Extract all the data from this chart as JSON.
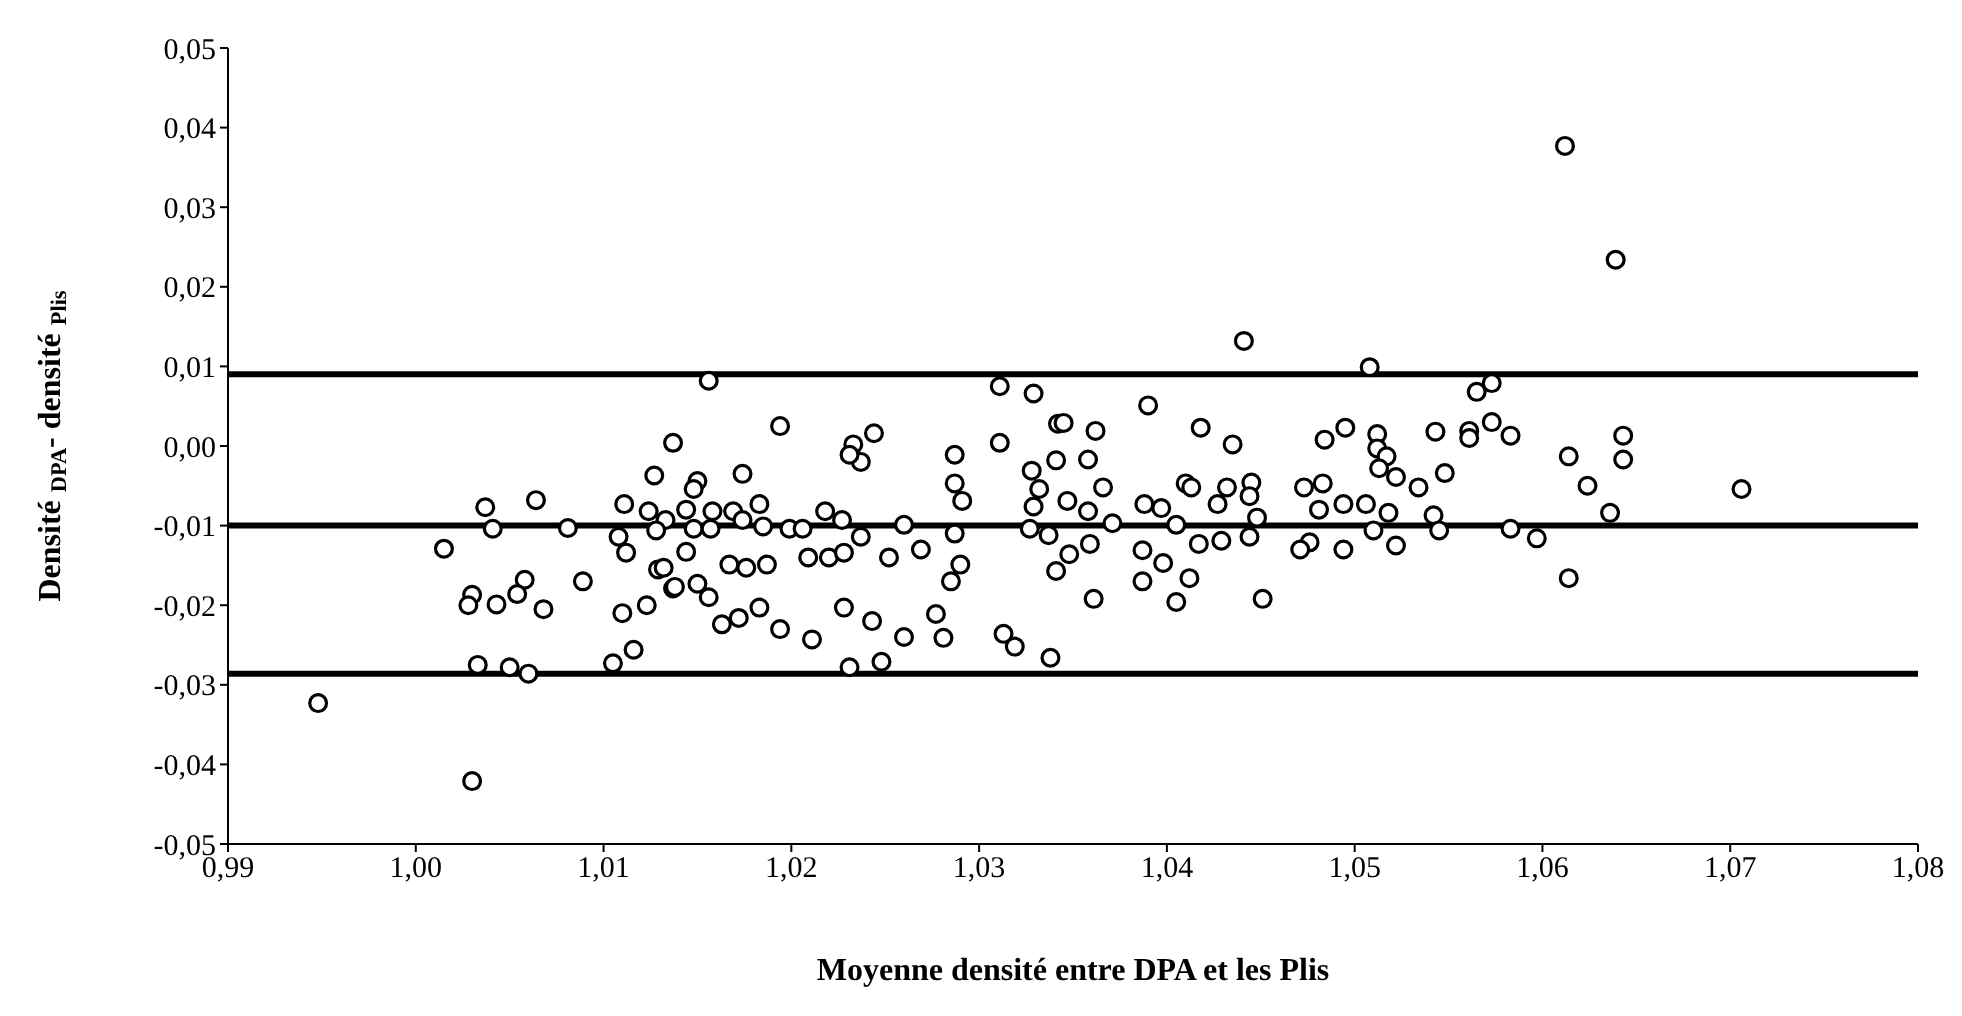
{
  "chart_data": {
    "type": "scatter",
    "xlabel": "Moyenne densité entre DPA et les  Plis",
    "ylabel": "Densité $_{DPA}$- densité $_{Plis}$",
    "xlim": [
      0.99,
      1.08
    ],
    "xticks": [
      {
        "value": 0.99,
        "label": "0,99"
      },
      {
        "value": 1.0,
        "label": "1,00"
      },
      {
        "value": 1.01,
        "label": "1,01"
      },
      {
        "value": 1.02,
        "label": "1,02"
      },
      {
        "value": 1.03,
        "label": "1,03"
      },
      {
        "value": 1.04,
        "label": "1,04"
      },
      {
        "value": 1.05,
        "label": "1,05"
      },
      {
        "value": 1.06,
        "label": "1,06"
      },
      {
        "value": 1.07,
        "label": "1,07"
      },
      {
        "value": 1.08,
        "label": "1,08"
      }
    ],
    "ylim": [
      -0.05,
      0.05
    ],
    "yticks": [
      {
        "value": -0.05,
        "label": "-0,05"
      },
      {
        "value": -0.04,
        "label": "-0,04"
      },
      {
        "value": -0.03,
        "label": "-0,03"
      },
      {
        "value": -0.02,
        "label": "-0,02"
      },
      {
        "value": -0.01,
        "label": "-0,01"
      },
      {
        "value": 0,
        "label": "0,00"
      },
      {
        "value": 0.01,
        "label": "0,01"
      },
      {
        "value": 0.02,
        "label": "0,02"
      },
      {
        "value": 0.03,
        "label": "0,03"
      },
      {
        "value": 0.04,
        "label": "0,04"
      },
      {
        "value": 0.05,
        "label": "0,05"
      }
    ],
    "grid": false,
    "marker": "circle",
    "ref_lines": [
      {
        "axis": "y",
        "value": 0.009,
        "color": "#000000"
      },
      {
        "axis": "y",
        "value": -0.01,
        "color": "#000000"
      },
      {
        "axis": "y",
        "value": -0.0286,
        "color": "#000000"
      }
    ],
    "series": [
      {
        "color": "#000000",
        "x": [
          1.0137,
          1.0127,
          1.0037,
          1.0064,
          1.0041,
          1.0015,
          1.0081,
          1.0111,
          1.0124,
          1.0133,
          1.0108,
          1.0112,
          1.0128,
          1.0129,
          1.0137,
          1.0089,
          1.0058,
          1.0054,
          1.003,
          1.0028,
          1.0043,
          1.0068,
          1.011,
          1.0123,
          1.0116,
          1.0105,
          1.0033,
          1.005,
          1.006,
          0.9948,
          1.003,
          1.0156,
          1.0194,
          1.0174,
          1.015,
          1.0148,
          1.0144,
          1.0158,
          1.0169,
          1.0183,
          1.0174,
          1.0148,
          1.0157,
          1.0185,
          1.0199,
          1.0206,
          1.0218,
          1.0227,
          1.0237,
          1.0233,
          1.0244,
          1.0237,
          1.0231,
          1.026,
          1.0144,
          1.0132,
          1.0167,
          1.0176,
          1.0187,
          1.0209,
          1.022,
          1.0228,
          1.0252,
          1.0269,
          1.0138,
          1.015,
          1.0156,
          1.0183,
          1.0172,
          1.0163,
          1.0194,
          1.0211,
          1.0228,
          1.0243,
          1.026,
          1.0277,
          1.0281,
          1.0231,
          1.0248,
          1.0287,
          1.0287,
          1.0291,
          1.0287,
          1.029,
          1.0285,
          1.0311,
          1.0329,
          1.0311,
          1.0342,
          1.0328,
          1.0332,
          1.0329,
          1.0327,
          1.0337,
          1.0341,
          1.0313,
          1.0319,
          1.0338,
          1.0441,
          1.0508,
          1.039,
          1.0565,
          1.0345,
          1.0362,
          1.0418,
          1.0435,
          1.0484,
          1.0495,
          1.0512,
          1.0512,
          1.0517,
          1.0543,
          1.0561,
          1.0561,
          1.0341,
          1.0358,
          1.0513,
          1.0522,
          1.0548,
          1.0534,
          1.0366,
          1.0347,
          1.0358,
          1.0388,
          1.0397,
          1.041,
          1.0413,
          1.0427,
          1.0432,
          1.0445,
          1.0444,
          1.0448,
          1.0473,
          1.0483,
          1.0481,
          1.0494,
          1.0506,
          1.0518,
          1.0542,
          1.0545,
          1.0371,
          1.0405,
          1.0359,
          1.0348,
          1.0387,
          1.0398,
          1.0387,
          1.0412,
          1.0417,
          1.0429,
          1.0444,
          1.0476,
          1.0471,
          1.0494,
          1.051,
          1.0522,
          1.0361,
          1.0405,
          1.0451,
          1.0612,
          1.0639,
          1.0573,
          1.0573,
          1.0583,
          1.0614,
          1.0643,
          1.0643,
          1.0624,
          1.0636,
          1.0706,
          1.0583,
          1.0597,
          1.0614
        ],
        "values": [
          0.0004,
          -0.0037,
          -0.0077,
          -0.0068,
          -0.0104,
          -0.0129,
          -0.0103,
          -0.0073,
          -0.0082,
          -0.0093,
          -0.0114,
          -0.0134,
          -0.0106,
          -0.0155,
          -0.0179,
          -0.017,
          -0.0168,
          -0.0186,
          -0.0187,
          -0.02,
          -0.0199,
          -0.0205,
          -0.021,
          -0.02,
          -0.0256,
          -0.0273,
          -0.0275,
          -0.0278,
          -0.0286,
          -0.0323,
          -0.0421,
          0.0082,
          0.0025,
          -0.0035,
          -0.0044,
          -0.0054,
          -0.008,
          -0.0082,
          -0.0082,
          -0.0073,
          -0.0093,
          -0.0104,
          -0.0104,
          -0.0101,
          -0.0104,
          -0.0104,
          -0.0082,
          -0.0093,
          -0.0114,
          0.0002,
          0.0016,
          -0.002,
          -0.0011,
          -0.0099,
          -0.0133,
          -0.0153,
          -0.0149,
          -0.0153,
          -0.0149,
          -0.014,
          -0.014,
          -0.0134,
          -0.014,
          -0.013,
          -0.0177,
          -0.0173,
          -0.019,
          -0.0203,
          -0.0216,
          -0.0224,
          -0.023,
          -0.0243,
          -0.0203,
          -0.022,
          -0.024,
          -0.0211,
          -0.0241,
          -0.0278,
          -0.0271,
          -0.0011,
          -0.0047,
          -0.0069,
          -0.011,
          -0.0149,
          -0.017,
          0.0075,
          0.0066,
          0.0004,
          0.0028,
          -0.0031,
          -0.0054,
          -0.0076,
          -0.0104,
          -0.0112,
          -0.0157,
          -0.0236,
          -0.0252,
          -0.0266,
          0.0132,
          0.0099,
          0.0051,
          0.0068,
          0.0029,
          0.0019,
          0.0023,
          0.0002,
          0.0008,
          0.0023,
          0.0015,
          -0.0003,
          -0.0013,
          0.0018,
          0.0019,
          0.001,
          -0.0018,
          -0.0017,
          -0.0028,
          -0.0039,
          -0.0034,
          -0.0052,
          -0.0052,
          -0.0069,
          -0.0082,
          -0.0073,
          -0.0078,
          -0.0047,
          -0.0052,
          -0.0073,
          -0.0052,
          -0.0046,
          -0.0063,
          -0.009,
          -0.0052,
          -0.0047,
          -0.008,
          -0.0073,
          -0.0073,
          -0.0084,
          -0.0087,
          -0.0106,
          -0.0097,
          -0.0099,
          -0.0123,
          -0.0136,
          -0.0131,
          -0.0147,
          -0.017,
          -0.0166,
          -0.0123,
          -0.0119,
          -0.0114,
          -0.0121,
          -0.013,
          -0.013,
          -0.0106,
          -0.0125,
          -0.0192,
          -0.0196,
          -0.0192,
          0.0377,
          0.0234,
          0.0079,
          0.003,
          0.0013,
          -0.0013,
          0.0013,
          -0.0017,
          -0.005,
          -0.0084,
          -0.0054,
          -0.0104,
          -0.0116,
          -0.0166
        ]
      }
    ]
  }
}
